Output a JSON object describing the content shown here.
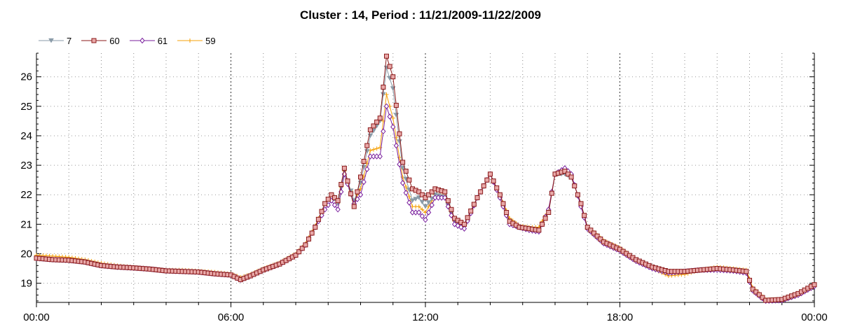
{
  "chart_data": {
    "type": "line",
    "title": "Cluster : 14, Period : 11/21/2009-11/22/2009",
    "xlabel": "",
    "ylabel": "",
    "x_ticks": [
      "00:00",
      "06:00",
      "12:00",
      "18:00",
      "00:00"
    ],
    "x_range_hours": [
      0,
      24
    ],
    "y_ticks": [
      19,
      20,
      21,
      22,
      23,
      24,
      25,
      26
    ],
    "ylim": [
      18.35,
      26.8
    ],
    "grid": "dotted",
    "legend_position": "top-left",
    "sample_interval_minutes": 6,
    "keypoints_hours": [
      0,
      0.5,
      1.0,
      1.5,
      2.0,
      2.5,
      3.0,
      3.5,
      4.0,
      4.5,
      5.0,
      5.5,
      6.0,
      6.3,
      6.6,
      7.0,
      7.5,
      8.0,
      8.3,
      8.6,
      8.9,
      9.1,
      9.3,
      9.5,
      9.8,
      10.0,
      10.3,
      10.6,
      10.8,
      11.0,
      11.3,
      11.6,
      11.8,
      12.0,
      12.3,
      12.6,
      12.9,
      13.2,
      13.6,
      14.0,
      14.3,
      14.6,
      14.9,
      15.2,
      15.5,
      15.8,
      16.0,
      16.3,
      16.5,
      16.8,
      17.0,
      17.5,
      18.0,
      18.5,
      19.0,
      19.5,
      20.0,
      20.5,
      21.0,
      21.5,
      21.9,
      22.1,
      22.5,
      23.0,
      23.5,
      24.0
    ],
    "series": [
      {
        "name": "7",
        "color": "#8a9ba8",
        "marker": "triangle-down",
        "values": [
          19.85,
          19.8,
          19.78,
          19.72,
          19.6,
          19.55,
          19.52,
          19.48,
          19.42,
          19.4,
          19.38,
          19.32,
          19.28,
          19.12,
          19.25,
          19.45,
          19.65,
          19.95,
          20.3,
          20.9,
          21.7,
          22.0,
          21.7,
          22.8,
          21.8,
          22.4,
          24.0,
          24.5,
          26.3,
          25.6,
          22.9,
          21.8,
          21.9,
          21.6,
          22.0,
          21.9,
          21.1,
          20.95,
          21.9,
          22.7,
          22.0,
          21.1,
          20.9,
          20.85,
          20.8,
          21.4,
          22.7,
          22.7,
          22.6,
          21.7,
          20.9,
          20.4,
          20.15,
          19.8,
          19.55,
          19.4,
          19.4,
          19.45,
          19.5,
          19.45,
          19.4,
          18.8,
          18.42,
          18.45,
          18.65,
          18.95
        ]
      },
      {
        "name": "60",
        "color": "#8b1a1a",
        "fill": "#e8a8a8",
        "marker": "square",
        "values": [
          19.85,
          19.8,
          19.78,
          19.72,
          19.6,
          19.55,
          19.52,
          19.48,
          19.42,
          19.4,
          19.38,
          19.32,
          19.28,
          19.12,
          19.25,
          19.45,
          19.65,
          19.95,
          20.3,
          20.9,
          21.7,
          22.0,
          21.8,
          22.9,
          21.6,
          22.6,
          24.2,
          24.6,
          26.7,
          26.0,
          23.1,
          22.2,
          22.1,
          21.9,
          22.2,
          22.1,
          21.2,
          21.0,
          21.9,
          22.7,
          22.0,
          21.1,
          20.9,
          20.85,
          20.8,
          21.4,
          22.7,
          22.8,
          22.6,
          21.7,
          20.9,
          20.4,
          20.15,
          19.8,
          19.55,
          19.4,
          19.4,
          19.45,
          19.5,
          19.45,
          19.4,
          18.8,
          18.42,
          18.45,
          18.65,
          18.95
        ]
      },
      {
        "name": "61",
        "color": "#7a1f9e",
        "marker": "diamond",
        "values": [
          19.85,
          19.8,
          19.78,
          19.72,
          19.6,
          19.55,
          19.52,
          19.48,
          19.42,
          19.4,
          19.38,
          19.32,
          19.28,
          19.12,
          19.25,
          19.45,
          19.65,
          19.95,
          20.3,
          20.9,
          21.5,
          21.8,
          21.5,
          22.7,
          21.7,
          22.0,
          23.3,
          23.3,
          25.0,
          24.3,
          22.4,
          21.4,
          21.4,
          21.15,
          21.9,
          21.9,
          21.0,
          20.85,
          21.9,
          22.7,
          21.9,
          21.0,
          20.9,
          20.8,
          20.75,
          21.5,
          22.7,
          22.9,
          22.7,
          21.6,
          20.85,
          20.35,
          20.1,
          19.75,
          19.5,
          19.35,
          19.4,
          19.45,
          19.45,
          19.42,
          19.35,
          18.75,
          18.4,
          18.42,
          18.6,
          18.9
        ]
      },
      {
        "name": "59",
        "color": "#f5a10a",
        "marker": "plus",
        "values": [
          19.95,
          19.92,
          19.88,
          19.8,
          19.68,
          19.6,
          19.55,
          19.5,
          19.45,
          19.45,
          19.42,
          19.38,
          19.32,
          19.2,
          19.3,
          19.5,
          19.7,
          20.0,
          20.35,
          20.95,
          21.7,
          22.0,
          21.7,
          22.8,
          21.8,
          22.2,
          23.5,
          23.6,
          25.4,
          24.6,
          22.6,
          21.6,
          21.6,
          21.4,
          22.0,
          21.95,
          21.1,
          20.95,
          21.9,
          22.7,
          22.0,
          21.2,
          20.95,
          20.9,
          20.9,
          21.5,
          22.7,
          22.75,
          22.6,
          21.7,
          20.9,
          20.45,
          20.2,
          19.8,
          19.5,
          19.25,
          19.3,
          19.45,
          19.55,
          19.5,
          19.45,
          18.85,
          18.45,
          18.45,
          18.65,
          18.95
        ]
      }
    ]
  }
}
